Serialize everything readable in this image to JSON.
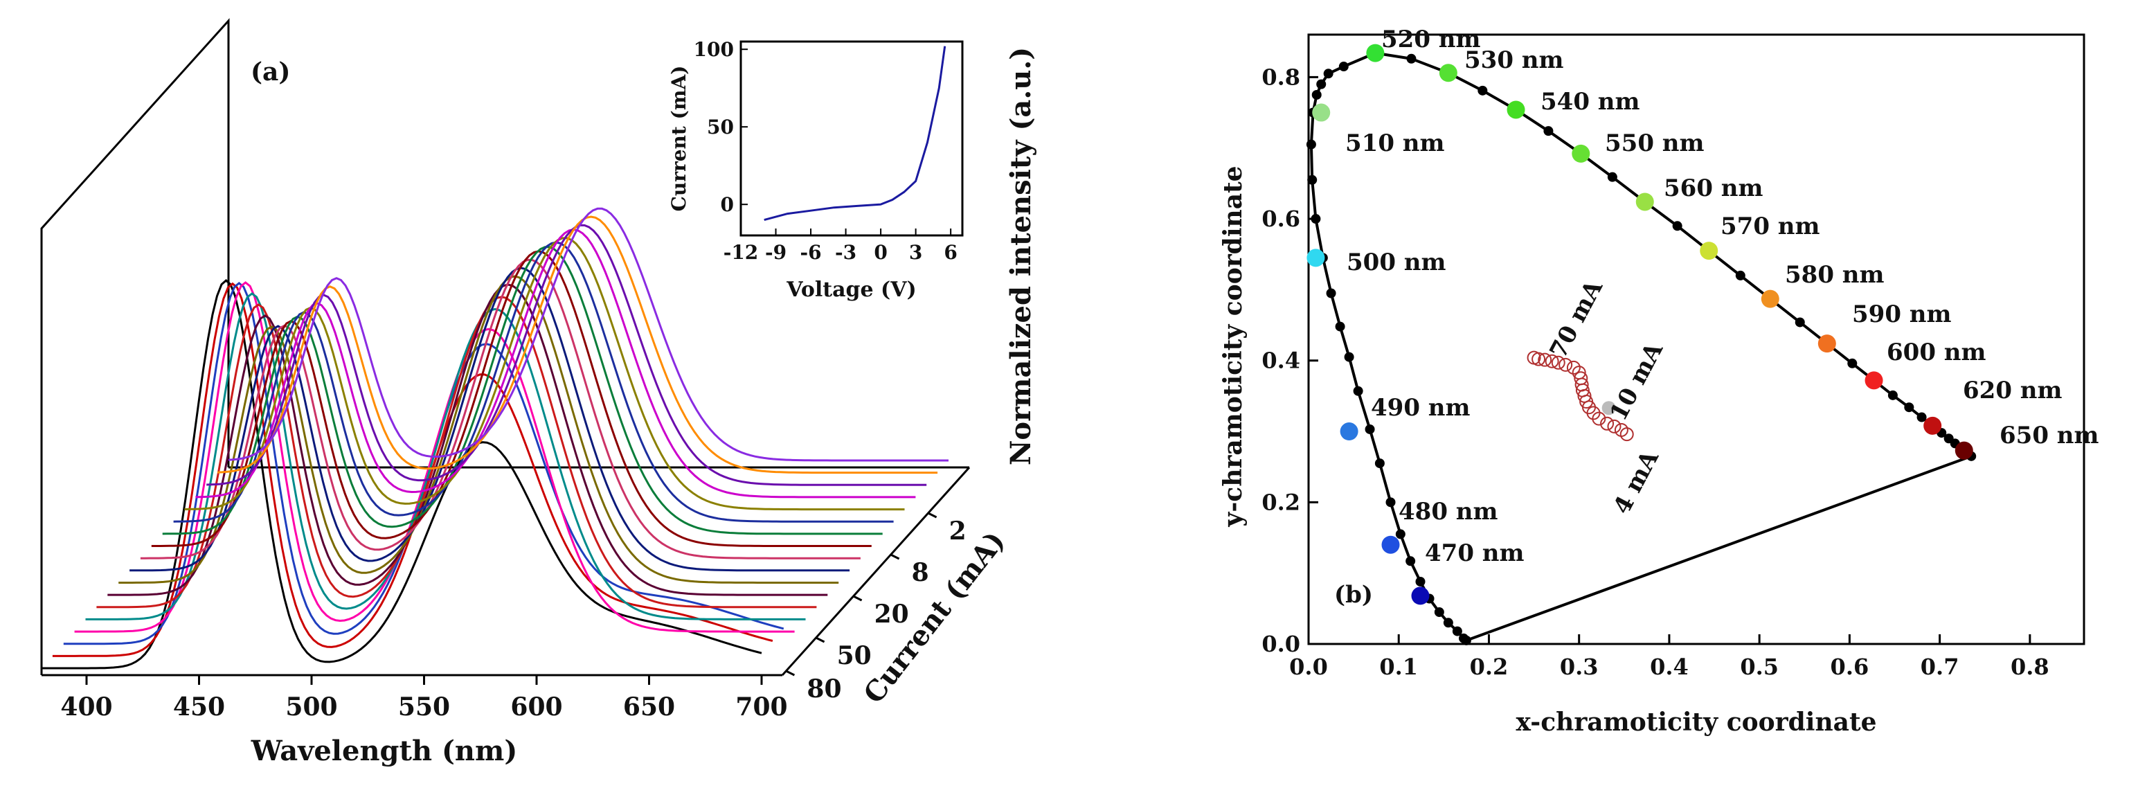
{
  "figure": {
    "panel_a_label": "(a)",
    "panel_b_label": "(b)"
  },
  "chart_data": [
    {
      "type": "line",
      "panel": "(a)",
      "subtype": "waterfall",
      "xlabel": "Wavelength (nm)",
      "ylabel": "Normalized intensity (a.u.)",
      "zlabel": "Current (mA)",
      "xticks": [
        "400",
        "450",
        "500",
        "550",
        "600",
        "650",
        "700"
      ],
      "xlim": [
        380,
        700
      ],
      "zticks": [
        "2",
        "8",
        "20",
        "50",
        "80"
      ],
      "series": [
        {
          "name": "s1",
          "blue_peak_nm": 428,
          "green_peak_nm": 545,
          "blue_amp": 0.47,
          "green_amp": 0.65,
          "color": "#8a2be2"
        },
        {
          "name": "s2",
          "blue_peak_nm": 430,
          "green_peak_nm": 546,
          "blue_amp": 0.48,
          "green_amp": 0.66,
          "color": "#ff8c00"
        },
        {
          "name": "s3",
          "blue_peak_nm": 432,
          "green_peak_nm": 547,
          "blue_amp": 0.49,
          "green_amp": 0.67,
          "color": "#6a0dad"
        },
        {
          "name": "s4",
          "blue_peak_nm": 434,
          "green_peak_nm": 548,
          "blue_amp": 0.5,
          "green_amp": 0.69,
          "color": "#cc00cc"
        },
        {
          "name": "s5",
          "blue_peak_nm": 436,
          "green_peak_nm": 549,
          "blue_amp": 0.52,
          "green_amp": 0.7,
          "color": "#8b8000"
        },
        {
          "name": "s6",
          "blue_peak_nm": 438,
          "green_peak_nm": 550,
          "blue_amp": 0.54,
          "green_amp": 0.72,
          "color": "#1c2e9e"
        },
        {
          "name": "s7",
          "blue_peak_nm": 440,
          "green_peak_nm": 551,
          "blue_amp": 0.56,
          "green_amp": 0.74,
          "color": "#0a7d3a"
        },
        {
          "name": "s8",
          "blue_peak_nm": 442,
          "green_peak_nm": 552,
          "blue_amp": 0.58,
          "green_amp": 0.76,
          "color": "#8b0000"
        },
        {
          "name": "s9",
          "blue_peak_nm": 444,
          "green_peak_nm": 553,
          "blue_amp": 0.6,
          "green_amp": 0.77,
          "color": "#cc3366"
        },
        {
          "name": "s10",
          "blue_peak_nm": 446,
          "green_peak_nm": 554,
          "blue_amp": 0.63,
          "green_amp": 0.78,
          "color": "#0b1a7a"
        },
        {
          "name": "s11",
          "blue_peak_nm": 448,
          "green_peak_nm": 556,
          "blue_amp": 0.66,
          "green_amp": 0.79,
          "color": "#7a6a00"
        },
        {
          "name": "s12",
          "blue_peak_nm": 450,
          "green_peak_nm": 558,
          "blue_amp": 0.72,
          "green_amp": 0.8,
          "color": "#5a0033"
        },
        {
          "name": "s13",
          "blue_peak_nm": 452,
          "green_peak_nm": 560,
          "blue_amp": 0.78,
          "green_amp": 0.8,
          "color": "#cc1a1a"
        },
        {
          "name": "s14",
          "blue_peak_nm": 454,
          "green_peak_nm": 562,
          "blue_amp": 0.84,
          "green_amp": 0.8,
          "color": "#008b8b"
        },
        {
          "name": "s15",
          "blue_peak_nm": 456,
          "green_peak_nm": 564,
          "blue_amp": 0.9,
          "green_amp": 0.78,
          "color": "#ff00aa"
        },
        {
          "name": "s16",
          "blue_peak_nm": 458,
          "green_peak_nm": 567,
          "blue_amp": 0.93,
          "green_amp": 0.75,
          "color": "#1f3fbf"
        },
        {
          "name": "s17",
          "blue_peak_nm": 460,
          "green_peak_nm": 570,
          "blue_amp": 0.96,
          "green_amp": 0.7,
          "color": "#cc0000"
        },
        {
          "name": "s18",
          "blue_peak_nm": 462,
          "green_peak_nm": 575,
          "blue_amp": 1.0,
          "green_amp": 0.55,
          "color": "#000000"
        }
      ]
    },
    {
      "type": "line",
      "panel": "(a) inset",
      "title": "",
      "xlabel": "Voltage (V)",
      "ylabel": "Current (mA)",
      "xticks": [
        "-12",
        "-9",
        "-6",
        "-3",
        "0",
        "3",
        "6"
      ],
      "yticks": [
        "0",
        "50",
        "100"
      ],
      "xlim": [
        -12,
        7
      ],
      "ylim": [
        -20,
        105
      ],
      "series": [
        {
          "name": "I-V",
          "color": "#1a1aa0",
          "x": [
            -10,
            -8,
            -6,
            -4,
            -2,
            0,
            1,
            2,
            3,
            4,
            5,
            5.5
          ],
          "y": [
            -10,
            -6,
            -4,
            -2,
            -1,
            0,
            3,
            8,
            15,
            40,
            75,
            102
          ]
        }
      ]
    },
    {
      "type": "scatter",
      "panel": "(b)",
      "xlabel": "x-chramoticity coordinate",
      "ylabel": "y-chramoticity coordinate",
      "xticks": [
        "0.0",
        "0.1",
        "0.2",
        "0.3",
        "0.4",
        "0.5",
        "0.6",
        "0.7",
        "0.8"
      ],
      "yticks": [
        "0.0",
        "0.2",
        "0.4",
        "0.6",
        "0.8"
      ],
      "xlim": [
        0,
        0.86
      ],
      "ylim": [
        0,
        0.86
      ],
      "locus_x": [
        0.175,
        0.172,
        0.165,
        0.155,
        0.145,
        0.134,
        0.124,
        0.113,
        0.102,
        0.091,
        0.079,
        0.068,
        0.055,
        0.045,
        0.035,
        0.025,
        0.016,
        0.008,
        0.004,
        0.003,
        0.005,
        0.009,
        0.014,
        0.022,
        0.039,
        0.074,
        0.114,
        0.155,
        0.193,
        0.23,
        0.266,
        0.302,
        0.337,
        0.373,
        0.409,
        0.444,
        0.479,
        0.512,
        0.545,
        0.575,
        0.603,
        0.627,
        0.648,
        0.666,
        0.68,
        0.692,
        0.702,
        0.71,
        0.717,
        0.723,
        0.727,
        0.73,
        0.733,
        0.735
      ],
      "locus_y": [
        0.005,
        0.008,
        0.018,
        0.03,
        0.045,
        0.064,
        0.088,
        0.117,
        0.155,
        0.2,
        0.255,
        0.303,
        0.357,
        0.405,
        0.448,
        0.495,
        0.545,
        0.6,
        0.655,
        0.705,
        0.75,
        0.775,
        0.79,
        0.805,
        0.815,
        0.834,
        0.826,
        0.806,
        0.781,
        0.754,
        0.724,
        0.692,
        0.659,
        0.624,
        0.59,
        0.555,
        0.52,
        0.487,
        0.454,
        0.424,
        0.396,
        0.372,
        0.351,
        0.334,
        0.32,
        0.308,
        0.298,
        0.29,
        0.283,
        0.277,
        0.273,
        0.27,
        0.267,
        0.265
      ],
      "wavelength_points": [
        {
          "label": "470 nm",
          "x": 0.124,
          "y": 0.068,
          "color": "#0a0ab4"
        },
        {
          "label": "480 nm",
          "x": 0.091,
          "y": 0.14,
          "color": "#1f4fe0"
        },
        {
          "label": "490 nm",
          "x": 0.045,
          "y": 0.3,
          "color": "#2a78e0"
        },
        {
          "label": "500 nm",
          "x": 0.008,
          "y": 0.545,
          "color": "#30d8f0"
        },
        {
          "label": "510 nm",
          "x": 0.014,
          "y": 0.75,
          "color": "#98e088"
        },
        {
          "label": "520 nm",
          "x": 0.074,
          "y": 0.834,
          "color": "#33e033"
        },
        {
          "label": "530 nm",
          "x": 0.155,
          "y": 0.806,
          "color": "#55e033"
        },
        {
          "label": "540 nm",
          "x": 0.23,
          "y": 0.754,
          "color": "#44dd22"
        },
        {
          "label": "550 nm",
          "x": 0.302,
          "y": 0.692,
          "color": "#66e033"
        },
        {
          "label": "560 nm",
          "x": 0.373,
          "y": 0.624,
          "color": "#99e044"
        },
        {
          "label": "570 nm",
          "x": 0.444,
          "y": 0.555,
          "color": "#cce033"
        },
        {
          "label": "580 nm",
          "x": 0.512,
          "y": 0.487,
          "color": "#f09020"
        },
        {
          "label": "590 nm",
          "x": 0.575,
          "y": 0.424,
          "color": "#f07020"
        },
        {
          "label": "600 nm",
          "x": 0.627,
          "y": 0.372,
          "color": "#f02020"
        },
        {
          "label": "620 nm",
          "x": 0.692,
          "y": 0.308,
          "color": "#c01010"
        },
        {
          "label": "650 nm",
          "x": 0.727,
          "y": 0.273,
          "color": "#6a0000"
        }
      ],
      "measured_points": {
        "x": [
          0.353,
          0.347,
          0.339,
          0.331,
          0.322,
          0.316,
          0.311,
          0.308,
          0.306,
          0.304,
          0.303,
          0.302,
          0.3,
          0.294,
          0.285,
          0.277,
          0.27,
          0.262,
          0.255,
          0.25
        ],
        "y": [
          0.296,
          0.302,
          0.307,
          0.311,
          0.318,
          0.326,
          0.334,
          0.342,
          0.35,
          0.358,
          0.366,
          0.375,
          0.383,
          0.39,
          0.394,
          0.397,
          0.399,
          0.401,
          0.402,
          0.404
        ]
      },
      "white_point": {
        "x": 0.333,
        "y": 0.333
      },
      "annotations": [
        "4 mA",
        "10 mA",
        "70 mA"
      ]
    }
  ]
}
